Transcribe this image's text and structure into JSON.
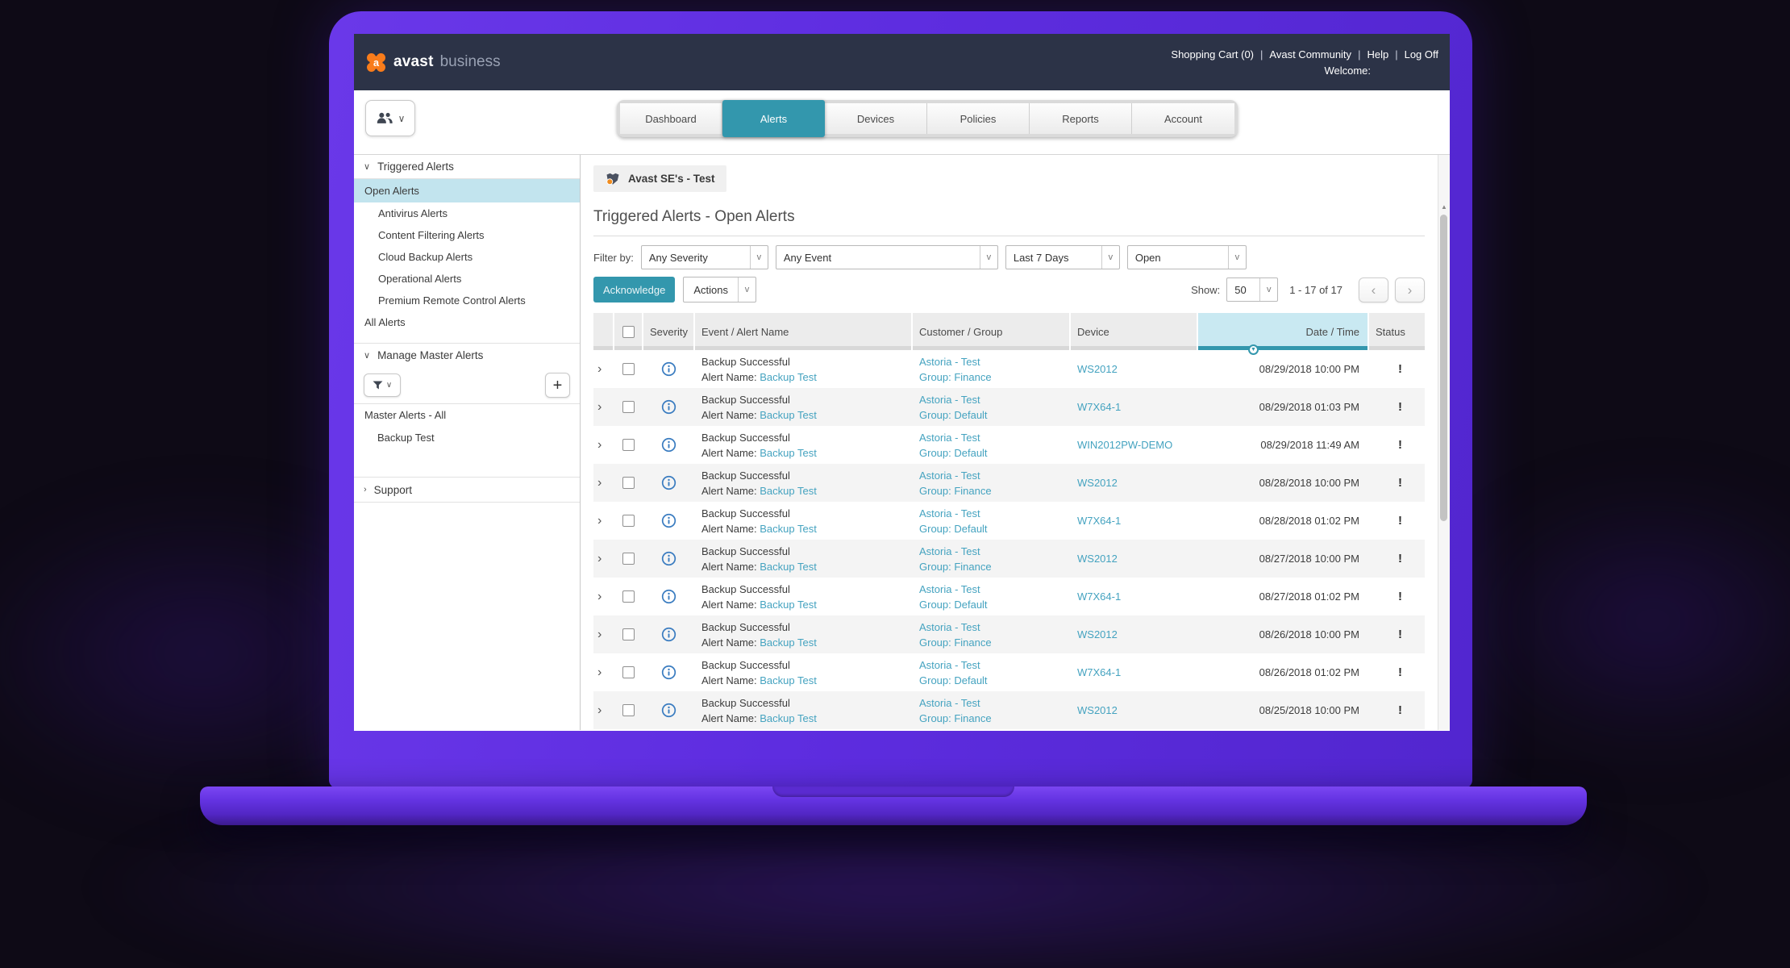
{
  "navbar": {
    "brand_bold": "avast",
    "brand_light": "business",
    "links": [
      "Shopping Cart (0)",
      "Avast Community",
      "Help",
      "Log Off"
    ],
    "welcome": "Welcome:"
  },
  "tabs": [
    {
      "label": "Dashboard",
      "active": false
    },
    {
      "label": "Alerts",
      "active": true
    },
    {
      "label": "Devices",
      "active": false
    },
    {
      "label": "Policies",
      "active": false
    },
    {
      "label": "Reports",
      "active": false
    },
    {
      "label": "Account",
      "active": false
    }
  ],
  "sidebar": {
    "sections": {
      "triggered": "Triggered Alerts",
      "manage": "Manage Master Alerts",
      "support": "Support"
    },
    "alert_items": [
      {
        "label": "Open Alerts",
        "indent": 0,
        "selected": true
      },
      {
        "label": "Antivirus Alerts",
        "indent": 1,
        "selected": false
      },
      {
        "label": "Content Filtering Alerts",
        "indent": 1,
        "selected": false
      },
      {
        "label": "Cloud Backup Alerts",
        "indent": 1,
        "selected": false
      },
      {
        "label": "Operational Alerts",
        "indent": 1,
        "selected": false
      },
      {
        "label": "Premium Remote Control Alerts",
        "indent": 1,
        "selected": false
      },
      {
        "label": "All Alerts",
        "indent": 0,
        "selected": false
      }
    ],
    "master_items": [
      {
        "label": "Master Alerts - All",
        "indent": 0
      },
      {
        "label": "Backup Test",
        "indent": 1
      }
    ],
    "plus_label": "+"
  },
  "main": {
    "customer_tag": "Avast SE's - Test",
    "title": "Triggered Alerts - Open Alerts",
    "filter_label": "Filter by:",
    "filters": [
      "Any Severity",
      "Any Event",
      "Last 7 Days",
      "Open"
    ],
    "acknowledge_label": "Acknowledge",
    "actions_label": "Actions",
    "show_label": "Show:",
    "page_size": "50",
    "range_text": "1 - 17 of 17",
    "table": {
      "headers": {
        "severity": "Severity",
        "event": "Event / Alert Name",
        "customer": "Customer / Group",
        "device": "Device",
        "datetime": "Date / Time",
        "status": "Status"
      },
      "alert_name_label": "Alert Name:",
      "rows": [
        {
          "event": "Backup Successful",
          "alert_name": "Backup Test",
          "customer": "Astoria - Test",
          "group": "Group: Finance",
          "device": "WS2012",
          "datetime": "08/29/2018 10:00 PM",
          "status": "!"
        },
        {
          "event": "Backup Successful",
          "alert_name": "Backup Test",
          "customer": "Astoria - Test",
          "group": "Group: Default",
          "device": "W7X64-1",
          "datetime": "08/29/2018 01:03 PM",
          "status": "!"
        },
        {
          "event": "Backup Successful",
          "alert_name": "Backup Test",
          "customer": "Astoria - Test",
          "group": "Group: Default",
          "device": "WIN2012PW-DEMO",
          "datetime": "08/29/2018 11:49 AM",
          "status": "!"
        },
        {
          "event": "Backup Successful",
          "alert_name": "Backup Test",
          "customer": "Astoria - Test",
          "group": "Group: Finance",
          "device": "WS2012",
          "datetime": "08/28/2018 10:00 PM",
          "status": "!"
        },
        {
          "event": "Backup Successful",
          "alert_name": "Backup Test",
          "customer": "Astoria - Test",
          "group": "Group: Default",
          "device": "W7X64-1",
          "datetime": "08/28/2018 01:02 PM",
          "status": "!"
        },
        {
          "event": "Backup Successful",
          "alert_name": "Backup Test",
          "customer": "Astoria - Test",
          "group": "Group: Finance",
          "device": "WS2012",
          "datetime": "08/27/2018 10:00 PM",
          "status": "!"
        },
        {
          "event": "Backup Successful",
          "alert_name": "Backup Test",
          "customer": "Astoria - Test",
          "group": "Group: Default",
          "device": "W7X64-1",
          "datetime": "08/27/2018 01:02 PM",
          "status": "!"
        },
        {
          "event": "Backup Successful",
          "alert_name": "Backup Test",
          "customer": "Astoria - Test",
          "group": "Group: Finance",
          "device": "WS2012",
          "datetime": "08/26/2018 10:00 PM",
          "status": "!"
        },
        {
          "event": "Backup Successful",
          "alert_name": "Backup Test",
          "customer": "Astoria - Test",
          "group": "Group: Default",
          "device": "W7X64-1",
          "datetime": "08/26/2018 01:02 PM",
          "status": "!"
        },
        {
          "event": "Backup Successful",
          "alert_name": "Backup Test",
          "customer": "Astoria - Test",
          "group": "Group: Finance",
          "device": "WS2012",
          "datetime": "08/25/2018 10:00 PM",
          "status": "!"
        }
      ]
    }
  },
  "colors": {
    "accent_teal": "#3397ad",
    "link_teal": "#45a3c0",
    "navbar_navy": "#2c3347",
    "selected_item_bg": "#c2e4ee",
    "date_header_bg": "#c9e9f2",
    "avast_orange": "#f97c1b",
    "laptop_purple": "#5e2de0"
  }
}
